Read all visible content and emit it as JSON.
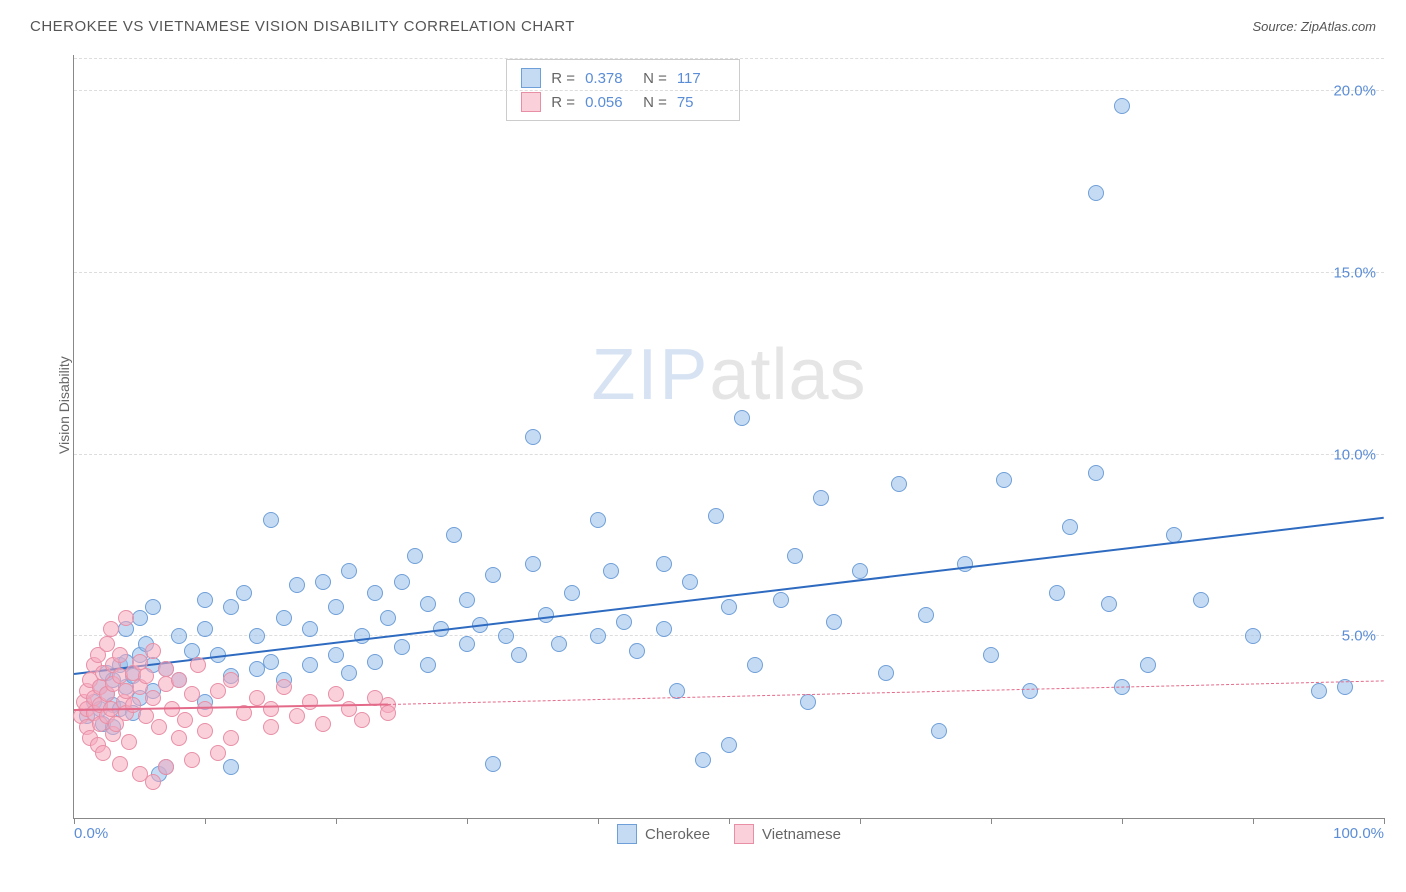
{
  "header": {
    "title": "CHEROKEE VS VIETNAMESE VISION DISABILITY CORRELATION CHART",
    "source": "Source: ZipAtlas.com"
  },
  "watermark": {
    "part1": "ZIP",
    "part2": "atlas"
  },
  "chart": {
    "type": "scatter",
    "ylabel": "Vision Disability",
    "xlim": [
      0,
      100
    ],
    "ylim": [
      0,
      21
    ],
    "xaxis_min_label": "0.0%",
    "xaxis_max_label": "100.0%",
    "yticks": [
      {
        "v": 5,
        "label": "5.0%"
      },
      {
        "v": 10,
        "label": "10.0%"
      },
      {
        "v": 15,
        "label": "15.0%"
      },
      {
        "v": 20,
        "label": "20.0%"
      }
    ],
    "xtick_positions": [
      0,
      10,
      20,
      30,
      40,
      50,
      60,
      70,
      80,
      90,
      100
    ],
    "grid_color": "#dddddd",
    "axis_color": "#888888",
    "background_color": "#ffffff",
    "label_color": "#5b8dd6",
    "point_radius": 8,
    "series": [
      {
        "name": "Cherokee",
        "fill": "rgba(150,190,235,0.55)",
        "stroke": "#6f9fd8",
        "trend_color": "#2e6bc0",
        "trend_width": 2.5,
        "trend_style": "solid",
        "trend": {
          "x1": 0,
          "y1": 4.0,
          "x2": 100,
          "y2": 8.3
        },
        "R": "0.378",
        "N": "117",
        "points": [
          [
            1,
            2.8
          ],
          [
            1.5,
            3.2
          ],
          [
            2,
            3.0
          ],
          [
            2,
            3.6
          ],
          [
            2.2,
            2.6
          ],
          [
            2.5,
            3.4
          ],
          [
            2.5,
            4.0
          ],
          [
            3,
            3.1
          ],
          [
            3,
            3.8
          ],
          [
            3,
            2.5
          ],
          [
            3.5,
            4.2
          ],
          [
            3.5,
            3.0
          ],
          [
            4,
            3.6
          ],
          [
            4,
            4.3
          ],
          [
            4,
            5.2
          ],
          [
            4.5,
            2.9
          ],
          [
            4.5,
            3.9
          ],
          [
            5,
            4.5
          ],
          [
            5,
            3.3
          ],
          [
            5,
            5.5
          ],
          [
            5.5,
            4.8
          ],
          [
            6,
            3.5
          ],
          [
            6,
            4.2
          ],
          [
            6,
            5.8
          ],
          [
            6.5,
            1.2
          ],
          [
            7,
            1.4
          ],
          [
            7,
            4.1
          ],
          [
            8,
            3.8
          ],
          [
            8,
            5.0
          ],
          [
            9,
            4.6
          ],
          [
            10,
            3.2
          ],
          [
            10,
            5.2
          ],
          [
            10,
            6.0
          ],
          [
            11,
            4.5
          ],
          [
            12,
            1.4
          ],
          [
            12,
            5.8
          ],
          [
            12,
            3.9
          ],
          [
            13,
            6.2
          ],
          [
            14,
            4.1
          ],
          [
            14,
            5.0
          ],
          [
            15,
            8.2
          ],
          [
            15,
            4.3
          ],
          [
            16,
            5.5
          ],
          [
            16,
            3.8
          ],
          [
            17,
            6.4
          ],
          [
            18,
            4.2
          ],
          [
            18,
            5.2
          ],
          [
            19,
            6.5
          ],
          [
            20,
            4.5
          ],
          [
            20,
            5.8
          ],
          [
            21,
            4.0
          ],
          [
            21,
            6.8
          ],
          [
            22,
            5.0
          ],
          [
            23,
            4.3
          ],
          [
            23,
            6.2
          ],
          [
            24,
            5.5
          ],
          [
            25,
            4.7
          ],
          [
            25,
            6.5
          ],
          [
            26,
            7.2
          ],
          [
            27,
            4.2
          ],
          [
            27,
            5.9
          ],
          [
            28,
            5.2
          ],
          [
            29,
            7.8
          ],
          [
            30,
            4.8
          ],
          [
            30,
            6.0
          ],
          [
            31,
            5.3
          ],
          [
            32,
            1.5
          ],
          [
            32,
            6.7
          ],
          [
            33,
            5.0
          ],
          [
            34,
            4.5
          ],
          [
            35,
            7.0
          ],
          [
            35,
            10.5
          ],
          [
            36,
            5.6
          ],
          [
            37,
            4.8
          ],
          [
            38,
            6.2
          ],
          [
            40,
            5.0
          ],
          [
            40,
            8.2
          ],
          [
            41,
            6.8
          ],
          [
            42,
            5.4
          ],
          [
            43,
            4.6
          ],
          [
            45,
            7.0
          ],
          [
            45,
            5.2
          ],
          [
            46,
            3.5
          ],
          [
            47,
            6.5
          ],
          [
            48,
            1.6
          ],
          [
            49,
            8.3
          ],
          [
            50,
            5.8
          ],
          [
            50,
            2.0
          ],
          [
            51,
            11.0
          ],
          [
            52,
            4.2
          ],
          [
            54,
            6.0
          ],
          [
            55,
            7.2
          ],
          [
            56,
            3.2
          ],
          [
            57,
            8.8
          ],
          [
            58,
            5.4
          ],
          [
            60,
            6.8
          ],
          [
            62,
            4.0
          ],
          [
            63,
            9.2
          ],
          [
            65,
            5.6
          ],
          [
            66,
            2.4
          ],
          [
            68,
            7.0
          ],
          [
            70,
            4.5
          ],
          [
            71,
            9.3
          ],
          [
            73,
            3.5
          ],
          [
            75,
            6.2
          ],
          [
            76,
            8.0
          ],
          [
            78,
            9.5
          ],
          [
            78,
            17.2
          ],
          [
            79,
            5.9
          ],
          [
            80,
            19.6
          ],
          [
            82,
            4.2
          ],
          [
            84,
            7.8
          ],
          [
            86,
            6.0
          ],
          [
            90,
            5.0
          ],
          [
            95,
            3.5
          ],
          [
            97,
            3.6
          ],
          [
            80,
            3.6
          ]
        ]
      },
      {
        "name": "Vietnamese",
        "fill": "rgba(245,170,190,0.55)",
        "stroke": "#e88fa6",
        "trend_color": "#e46a8a",
        "trend_width": 2,
        "trend_style": "solid",
        "trend": {
          "x1": 0,
          "y1": 3.0,
          "x2": 24,
          "y2": 3.15
        },
        "trend_dash": {
          "x1": 24,
          "y1": 3.15,
          "x2": 100,
          "y2": 3.8
        },
        "R": "0.056",
        "N": "75",
        "points": [
          [
            0.5,
            2.8
          ],
          [
            0.8,
            3.2
          ],
          [
            1,
            2.5
          ],
          [
            1,
            3.0
          ],
          [
            1,
            3.5
          ],
          [
            1.2,
            2.2
          ],
          [
            1.2,
            3.8
          ],
          [
            1.5,
            4.2
          ],
          [
            1.5,
            2.9
          ],
          [
            1.5,
            3.3
          ],
          [
            1.8,
            2.0
          ],
          [
            1.8,
            4.5
          ],
          [
            2,
            3.1
          ],
          [
            2,
            2.6
          ],
          [
            2,
            3.6
          ],
          [
            2.2,
            4.0
          ],
          [
            2.2,
            1.8
          ],
          [
            2.5,
            3.4
          ],
          [
            2.5,
            2.8
          ],
          [
            2.5,
            4.8
          ],
          [
            2.8,
            3.0
          ],
          [
            2.8,
            5.2
          ],
          [
            3,
            2.3
          ],
          [
            3,
            3.7
          ],
          [
            3,
            4.2
          ],
          [
            3.2,
            2.6
          ],
          [
            3.5,
            3.9
          ],
          [
            3.5,
            1.5
          ],
          [
            3.5,
            4.5
          ],
          [
            3.8,
            3.2
          ],
          [
            4,
            2.9
          ],
          [
            4,
            5.5
          ],
          [
            4,
            3.5
          ],
          [
            4.2,
            2.1
          ],
          [
            4.5,
            4.0
          ],
          [
            4.5,
            3.1
          ],
          [
            5,
            3.6
          ],
          [
            5,
            1.2
          ],
          [
            5,
            4.3
          ],
          [
            5.5,
            2.8
          ],
          [
            5.5,
            3.9
          ],
          [
            6,
            3.3
          ],
          [
            6,
            1.0
          ],
          [
            6,
            4.6
          ],
          [
            6.5,
            2.5
          ],
          [
            7,
            3.7
          ],
          [
            7,
            1.4
          ],
          [
            7,
            4.1
          ],
          [
            7.5,
            3.0
          ],
          [
            8,
            2.2
          ],
          [
            8,
            3.8
          ],
          [
            8.5,
            2.7
          ],
          [
            9,
            3.4
          ],
          [
            9,
            1.6
          ],
          [
            9.5,
            4.2
          ],
          [
            10,
            3.0
          ],
          [
            10,
            2.4
          ],
          [
            11,
            3.5
          ],
          [
            11,
            1.8
          ],
          [
            12,
            2.2
          ],
          [
            12,
            3.8
          ],
          [
            13,
            2.9
          ],
          [
            14,
            3.3
          ],
          [
            15,
            2.5
          ],
          [
            15,
            3.0
          ],
          [
            16,
            3.6
          ],
          [
            17,
            2.8
          ],
          [
            18,
            3.2
          ],
          [
            19,
            2.6
          ],
          [
            20,
            3.4
          ],
          [
            21,
            3.0
          ],
          [
            22,
            2.7
          ],
          [
            23,
            3.3
          ],
          [
            24,
            3.1
          ],
          [
            24,
            2.9
          ]
        ]
      }
    ],
    "legend_top": {
      "rows": [
        {
          "swatch_fill": "rgba(150,190,235,0.55)",
          "swatch_stroke": "#6f9fd8",
          "r_label": "R =",
          "r_val": "0.378",
          "n_label": "N =",
          "n_val": "117"
        },
        {
          "swatch_fill": "rgba(245,170,190,0.55)",
          "swatch_stroke": "#e88fa6",
          "r_label": "R =",
          "r_val": "0.056",
          "n_label": "N =",
          "n_val": "75"
        }
      ]
    },
    "legend_bottom": [
      {
        "swatch_fill": "rgba(150,190,235,0.55)",
        "swatch_stroke": "#6f9fd8",
        "label": "Cherokee"
      },
      {
        "swatch_fill": "rgba(245,170,190,0.55)",
        "swatch_stroke": "#e88fa6",
        "label": "Vietnamese"
      }
    ]
  }
}
